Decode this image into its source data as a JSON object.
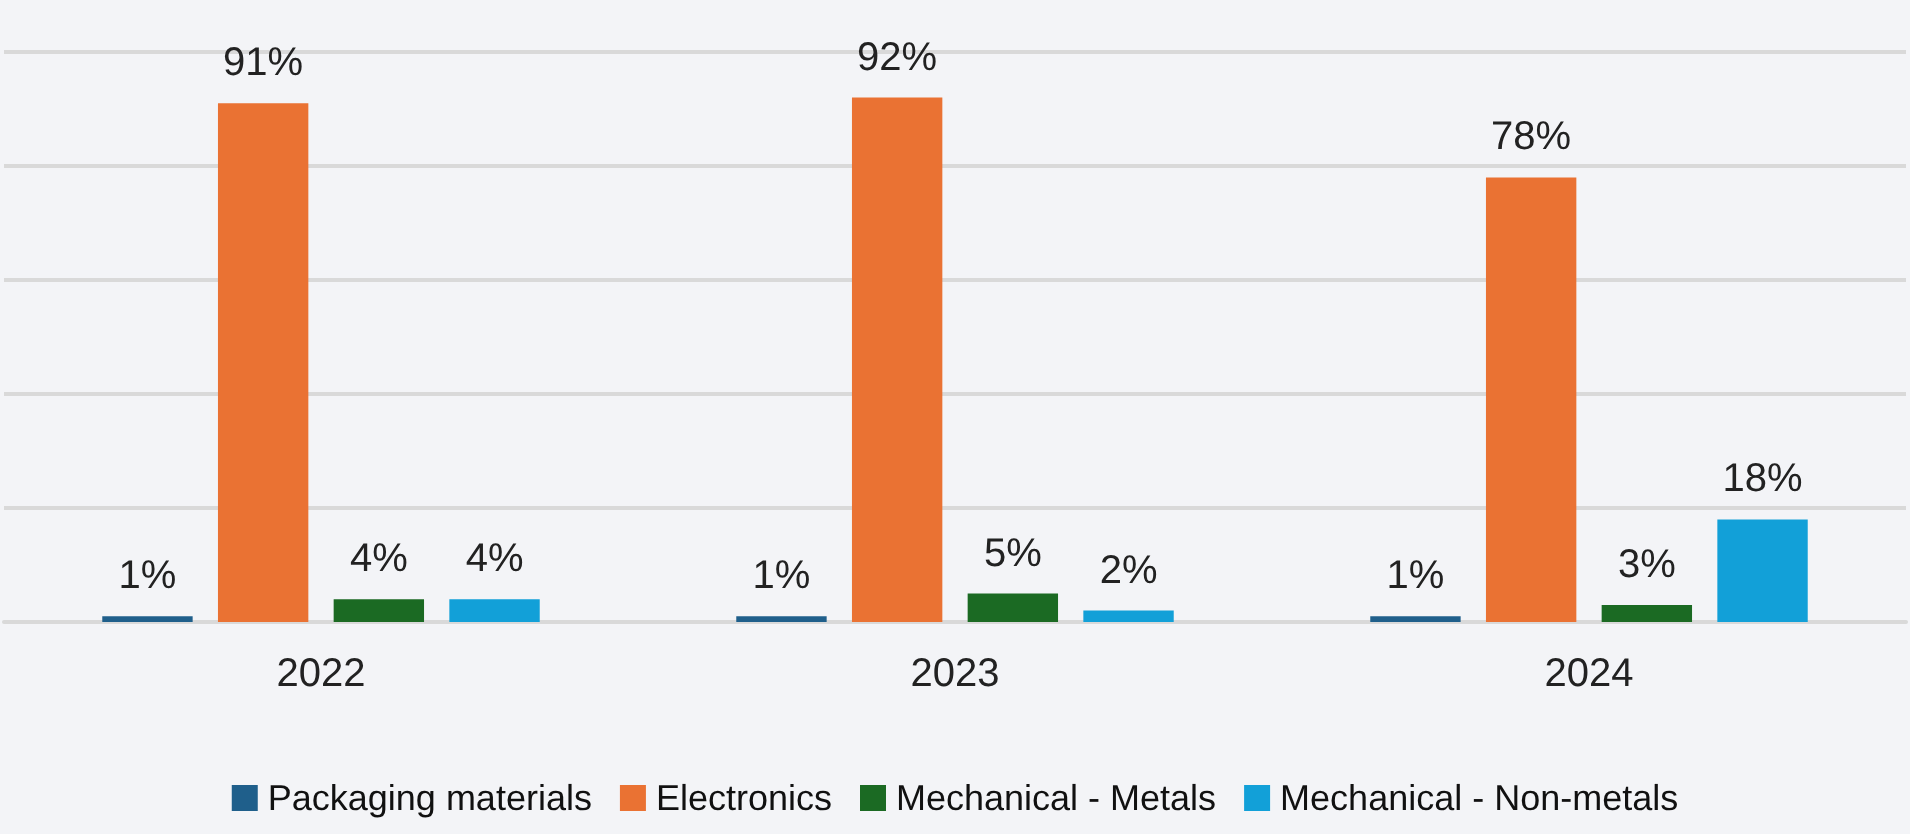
{
  "chart_data": {
    "type": "bar",
    "categories": [
      "2022",
      "2023",
      "2024"
    ],
    "series": [
      {
        "name": "Packaging materials",
        "color": "#1f5f8b",
        "values": [
          1,
          1,
          1
        ],
        "value_labels": [
          "1%",
          "1%",
          "1%"
        ]
      },
      {
        "name": "Electronics",
        "color": "#ea7233",
        "values": [
          91,
          92,
          78
        ],
        "value_labels": [
          "91%",
          "92%",
          "78%"
        ]
      },
      {
        "name": "Mechanical - Metals",
        "color": "#1b6a23",
        "values": [
          4,
          5,
          3
        ],
        "value_labels": [
          "4%",
          "5%",
          "3%"
        ]
      },
      {
        "name": "Mechanical - Non-metals",
        "color": "#12a0d8",
        "values": [
          4,
          2,
          18
        ],
        "value_labels": [
          "4%",
          "2%",
          "18%"
        ]
      }
    ],
    "ylim": [
      0,
      100
    ],
    "yticks": [
      0,
      20,
      40,
      60,
      80,
      100
    ],
    "grid": "y",
    "tick_labels": "x",
    "legend": "bottom"
  }
}
